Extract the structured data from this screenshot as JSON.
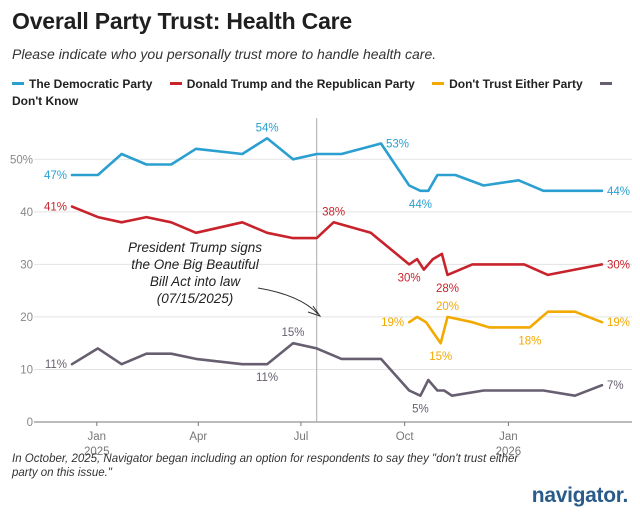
{
  "title": "Overall Party Trust: Health Care",
  "subtitle": "Please indicate who you personally trust more to handle health care.",
  "footnote": "In October, 2025, Navigator began including an option for respondents to say they \"don't trust either party on this issue.\"",
  "logo": "navigator.",
  "colors": {
    "dem": "#2a9fd0",
    "rep": "#c8232c",
    "neither": "#f2a900",
    "dk": "#675f70",
    "grid": "#e3e3e3",
    "axis": "#777777",
    "logo": "#2a5b8a"
  },
  "chart_data": {
    "type": "line",
    "title": "Overall Party Trust: Health Care",
    "xlabel": "",
    "ylabel": "",
    "ylim": [
      0,
      55
    ],
    "yticks": [
      0,
      10,
      20,
      30,
      40,
      50
    ],
    "ytick_labels": [
      "0",
      "10",
      "20",
      "30",
      "40",
      "50%"
    ],
    "xlim": [
      "2024-12-10",
      "2026-03-25"
    ],
    "xticks": [
      {
        "date": "2025-01-01",
        "label": "Jan",
        "sublabel": "2025"
      },
      {
        "date": "2025-04-01",
        "label": "Apr",
        "sublabel": ""
      },
      {
        "date": "2025-07-01",
        "label": "Jul",
        "sublabel": ""
      },
      {
        "date": "2025-10-01",
        "label": "Oct",
        "sublabel": ""
      },
      {
        "date": "2026-01-01",
        "label": "Jan",
        "sublabel": "2026"
      }
    ],
    "grid": true,
    "legend_position": "top",
    "annotation": {
      "date": "2025-07-15",
      "text": [
        "President Trump signs",
        "the One Big Beautiful",
        "Bill Act into law",
        "(07/15/2025)"
      ]
    },
    "series": [
      {
        "name": "The Democratic Party",
        "color": "#2a9fd0",
        "points": [
          [
            "2024-12-10",
            47
          ],
          [
            "2025-01-02",
            47
          ],
          [
            "2025-01-23",
            51
          ],
          [
            "2025-02-14",
            49
          ],
          [
            "2025-03-08",
            49
          ],
          [
            "2025-03-30",
            52
          ],
          [
            "2025-05-10",
            51
          ],
          [
            "2025-06-01",
            54
          ],
          [
            "2025-06-24",
            50
          ],
          [
            "2025-07-15",
            51
          ],
          [
            "2025-08-06",
            51
          ],
          [
            "2025-09-10",
            53
          ],
          [
            "2025-10-05",
            45
          ],
          [
            "2025-10-15",
            44
          ],
          [
            "2025-10-22",
            44
          ],
          [
            "2025-10-30",
            47
          ],
          [
            "2025-11-15",
            47
          ],
          [
            "2025-12-10",
            45
          ],
          [
            "2026-01-10",
            46
          ],
          [
            "2026-02-01",
            44
          ],
          [
            "2026-03-01",
            44
          ],
          [
            "2026-03-25",
            44
          ]
        ],
        "labels": [
          {
            "date": "2024-12-10",
            "value": 47,
            "text": "47%",
            "pos": "left"
          },
          {
            "date": "2025-06-01",
            "value": 54,
            "text": "54%",
            "pos": "above"
          },
          {
            "date": "2025-09-10",
            "value": 53,
            "text": "53%",
            "pos": "right"
          },
          {
            "date": "2025-10-15",
            "value": 44,
            "text": "44%",
            "pos": "below"
          },
          {
            "date": "2026-03-25",
            "value": 44,
            "text": "44%",
            "pos": "right"
          }
        ]
      },
      {
        "name": "Donald Trump and the Republican Party",
        "color": "#c8232c",
        "points": [
          [
            "2024-12-10",
            41
          ],
          [
            "2025-01-02",
            39
          ],
          [
            "2025-01-23",
            38
          ],
          [
            "2025-02-14",
            39
          ],
          [
            "2025-03-08",
            38
          ],
          [
            "2025-03-30",
            36
          ],
          [
            "2025-05-10",
            38
          ],
          [
            "2025-06-01",
            36
          ],
          [
            "2025-06-24",
            35
          ],
          [
            "2025-07-15",
            35
          ],
          [
            "2025-07-30",
            38
          ],
          [
            "2025-09-01",
            36
          ],
          [
            "2025-10-05",
            30
          ],
          [
            "2025-10-12",
            31
          ],
          [
            "2025-10-18",
            29
          ],
          [
            "2025-10-26",
            31
          ],
          [
            "2025-11-03",
            32
          ],
          [
            "2025-11-08",
            28
          ],
          [
            "2025-11-30",
            30
          ],
          [
            "2025-12-20",
            30
          ],
          [
            "2026-01-15",
            30
          ],
          [
            "2026-02-05",
            28
          ],
          [
            "2026-03-01",
            29
          ],
          [
            "2026-03-25",
            30
          ]
        ],
        "labels": [
          {
            "date": "2024-12-10",
            "value": 41,
            "text": "41%",
            "pos": "left"
          },
          {
            "date": "2025-07-30",
            "value": 38,
            "text": "38%",
            "pos": "above"
          },
          {
            "date": "2025-10-05",
            "value": 30,
            "text": "30%",
            "pos": "below"
          },
          {
            "date": "2025-11-08",
            "value": 28,
            "text": "28%",
            "pos": "below"
          },
          {
            "date": "2026-03-25",
            "value": 30,
            "text": "30%",
            "pos": "right"
          }
        ]
      },
      {
        "name": "Don't Trust Either Party",
        "color": "#f2a900",
        "points": [
          [
            "2025-10-05",
            19
          ],
          [
            "2025-10-12",
            20
          ],
          [
            "2025-10-20",
            19
          ],
          [
            "2025-11-02",
            15
          ],
          [
            "2025-11-08",
            20
          ],
          [
            "2025-11-30",
            19
          ],
          [
            "2025-12-15",
            18
          ],
          [
            "2026-01-20",
            18
          ],
          [
            "2026-02-05",
            21
          ],
          [
            "2026-03-01",
            21
          ],
          [
            "2026-03-25",
            19
          ]
        ],
        "labels": [
          {
            "date": "2025-10-05",
            "value": 19,
            "text": "19%",
            "pos": "left"
          },
          {
            "date": "2025-11-08",
            "value": 20,
            "text": "20%",
            "pos": "above"
          },
          {
            "date": "2025-11-02",
            "value": 15,
            "text": "15%",
            "pos": "below"
          },
          {
            "date": "2026-01-20",
            "value": 18,
            "text": "18%",
            "pos": "below"
          },
          {
            "date": "2026-03-25",
            "value": 19,
            "text": "19%",
            "pos": "right"
          }
        ]
      },
      {
        "name": "Don't Know",
        "color": "#675f70",
        "points": [
          [
            "2024-12-10",
            11
          ],
          [
            "2025-01-02",
            14
          ],
          [
            "2025-01-23",
            11
          ],
          [
            "2025-02-14",
            13
          ],
          [
            "2025-03-08",
            13
          ],
          [
            "2025-03-30",
            12
          ],
          [
            "2025-05-10",
            11
          ],
          [
            "2025-06-01",
            11
          ],
          [
            "2025-06-24",
            15
          ],
          [
            "2025-07-15",
            14
          ],
          [
            "2025-08-06",
            12
          ],
          [
            "2025-09-10",
            12
          ],
          [
            "2025-10-05",
            6
          ],
          [
            "2025-10-15",
            5
          ],
          [
            "2025-10-22",
            8
          ],
          [
            "2025-10-30",
            6
          ],
          [
            "2025-11-05",
            6
          ],
          [
            "2025-11-12",
            5
          ],
          [
            "2025-12-10",
            6
          ],
          [
            "2026-01-10",
            6
          ],
          [
            "2026-02-01",
            6
          ],
          [
            "2026-03-01",
            5
          ],
          [
            "2026-03-25",
            7
          ]
        ],
        "labels": [
          {
            "date": "2024-12-10",
            "value": 11,
            "text": "11%",
            "pos": "left"
          },
          {
            "date": "2025-06-24",
            "value": 15,
            "text": "15%",
            "pos": "above"
          },
          {
            "date": "2025-06-01",
            "value": 11,
            "text": "11%",
            "pos": "below"
          },
          {
            "date": "2025-10-15",
            "value": 5,
            "text": "5%",
            "pos": "below"
          },
          {
            "date": "2026-03-25",
            "value": 7,
            "text": "7%",
            "pos": "right"
          }
        ]
      }
    ]
  }
}
